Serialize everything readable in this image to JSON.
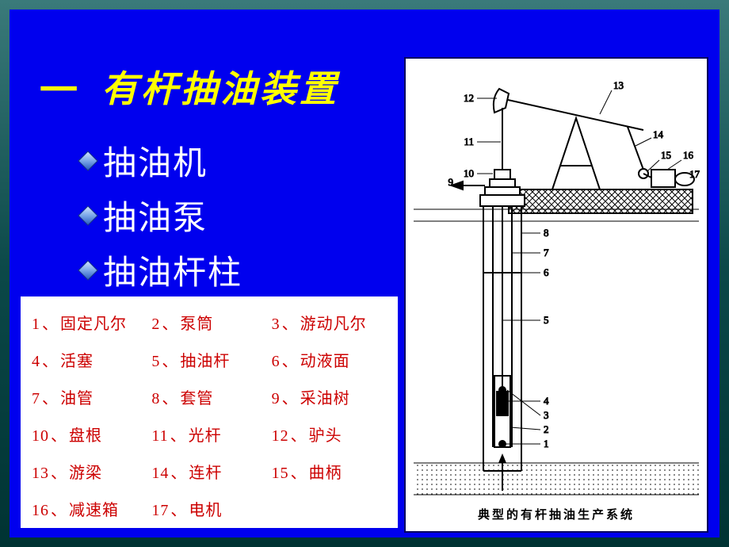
{
  "title": {
    "marker": "一",
    "text": "有杆抽油装置"
  },
  "bullets": [
    "抽油机",
    "抽油泵",
    "抽油杆柱"
  ],
  "legend": [
    {
      "n": "1",
      "t": "固定凡尔"
    },
    {
      "n": "2",
      "t": "泵筒"
    },
    {
      "n": "3",
      "t": "游动凡尔"
    },
    {
      "n": "4",
      "t": "活塞"
    },
    {
      "n": "5",
      "t": "抽油杆"
    },
    {
      "n": "6",
      "t": "动液面"
    },
    {
      "n": "7",
      "t": "油管"
    },
    {
      "n": "8",
      "t": "套管"
    },
    {
      "n": "9",
      "t": "采油树"
    },
    {
      "n": "10",
      "t": "盘根"
    },
    {
      "n": "11",
      "t": "光杆"
    },
    {
      "n": "12",
      "t": "驴头"
    },
    {
      "n": "13",
      "t": "游梁"
    },
    {
      "n": "14",
      "t": "连杆"
    },
    {
      "n": "15",
      "t": "曲柄"
    },
    {
      "n": "16",
      "t": "减速箱"
    },
    {
      "n": "17",
      "t": "电机"
    }
  ],
  "caption": "典型的有杆抽油生产系统",
  "diagram_labels": {
    "top": [
      "9",
      "10",
      "11",
      "12",
      "13",
      "14",
      "15",
      "16",
      "17"
    ],
    "side": [
      "1",
      "2",
      "3",
      "4",
      "5",
      "6",
      "7",
      "8"
    ]
  },
  "style": {
    "slide_bg": "#0000ee",
    "page_gradient": [
      "#3a7a7a",
      "#0b4848",
      "#003333"
    ],
    "title_color": "#ffff00",
    "title_fontsize": 46,
    "bullet_color": "#ffffff",
    "bullet_fontsize": 42,
    "diamond_colors": [
      "#cfe4ff",
      "#7aa6e8",
      "#2a5cc0"
    ],
    "legend_bg": "#ffffff",
    "legend_text_color": "#cc0000",
    "legend_fontsize": 20,
    "diagram_bg": "#ffffff",
    "diagram_border": "#000060",
    "diagram_stroke": "#000000",
    "diagram_hatch": "#000000",
    "caption_fontsize": 15
  }
}
